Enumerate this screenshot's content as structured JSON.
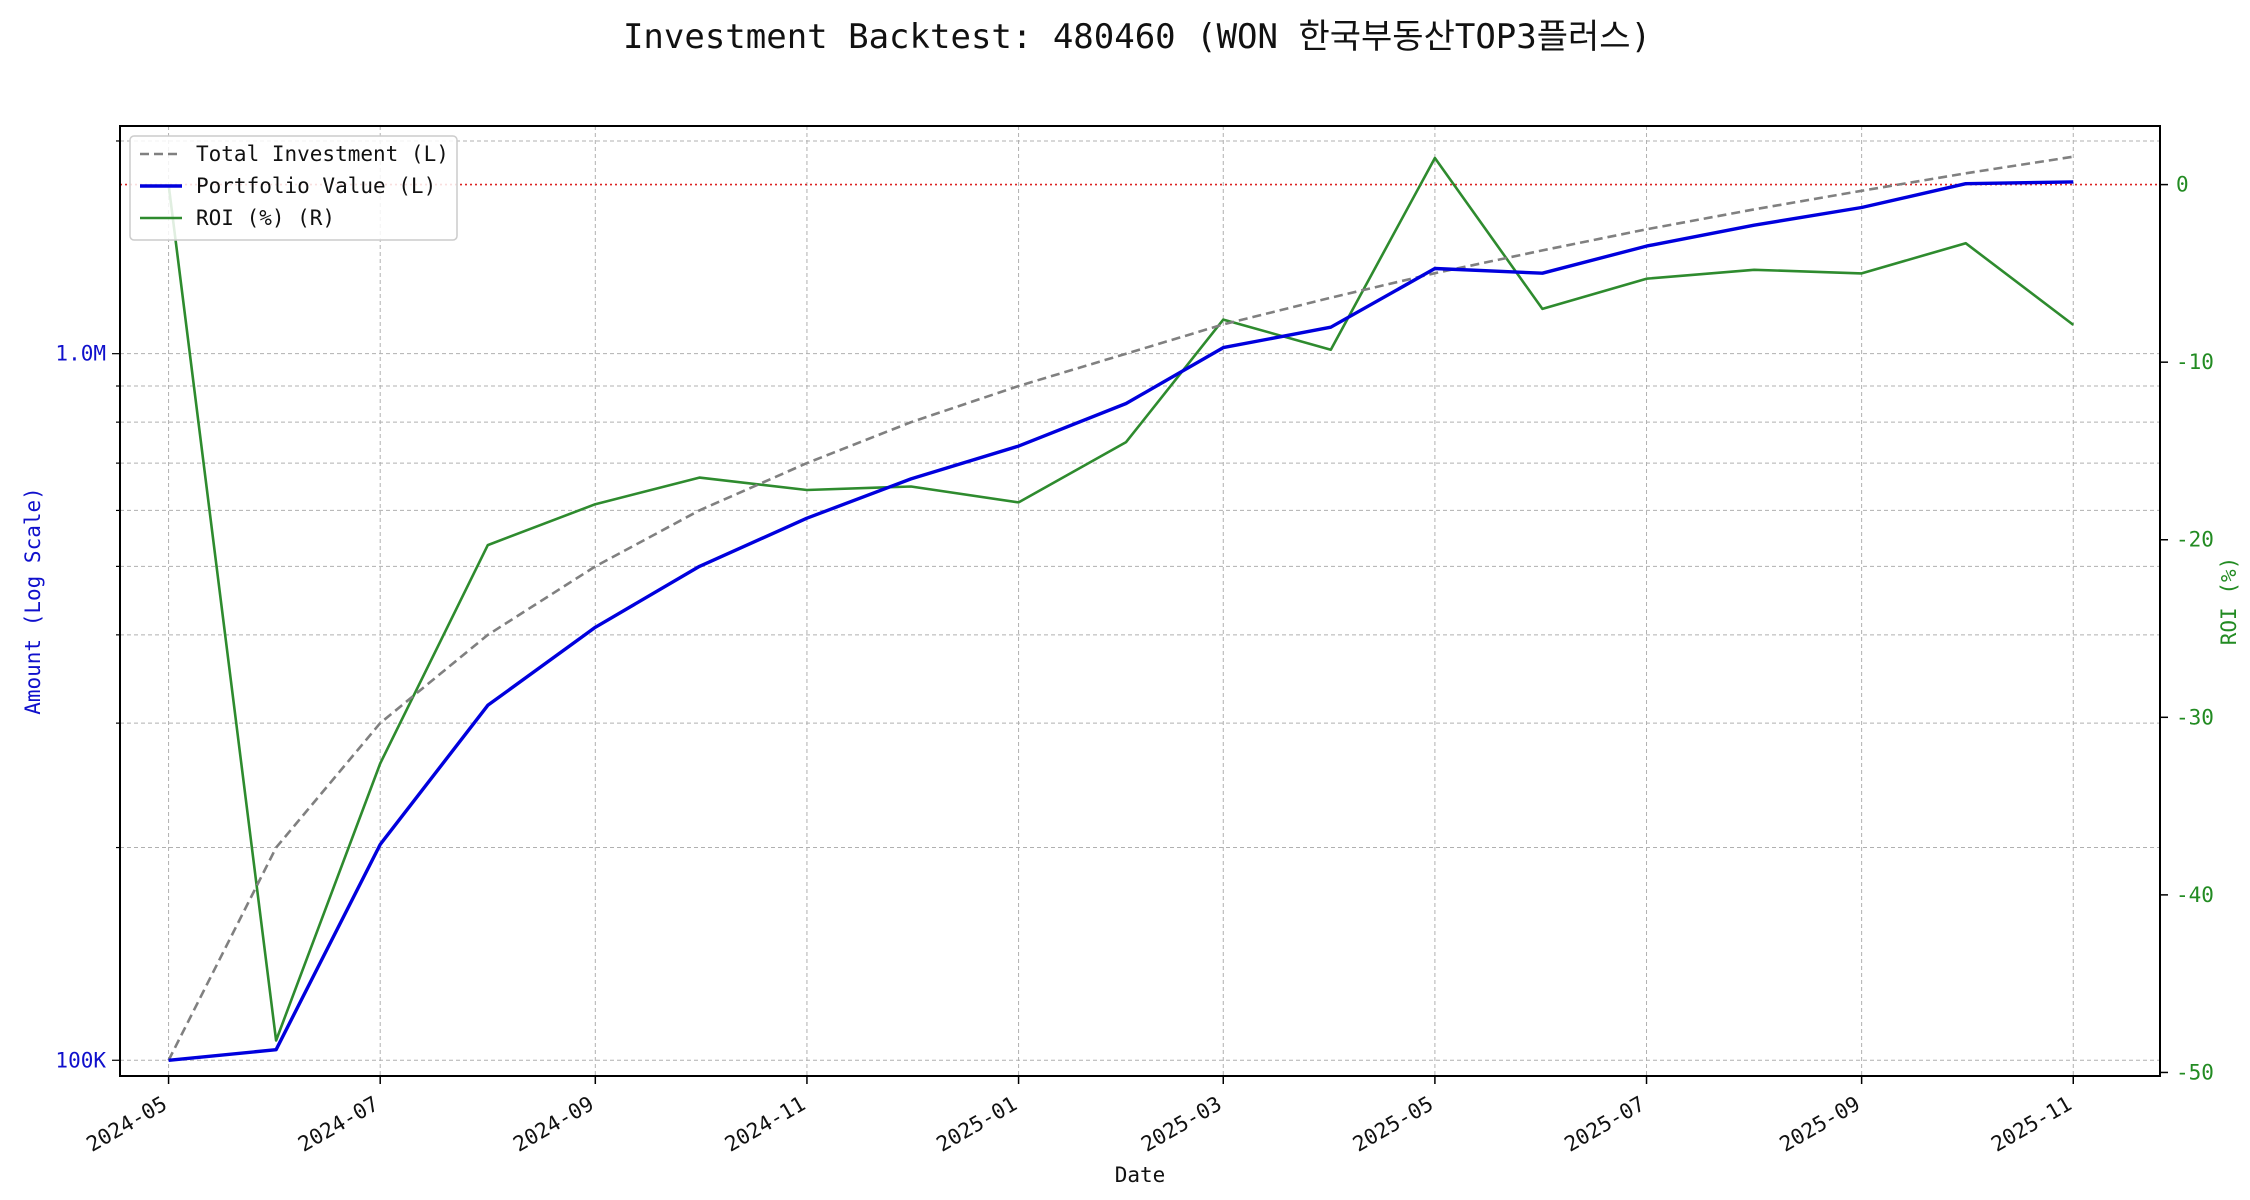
{
  "chart_data": {
    "type": "line",
    "title": "Investment Backtest: 480460 (WON 한국부동산TOP3플러스)",
    "xlabel": "Date",
    "ylabel_left": "Amount (Log Scale)",
    "ylabel_right": "ROI (%)",
    "y_left_scale": "log",
    "y_left_range": [
      95000,
      2100000
    ],
    "y_left_ticks": [
      {
        "value": 100000,
        "label": "100K"
      },
      {
        "value": 1000000,
        "label": "1.0M"
      }
    ],
    "y_right_range": [
      -50.2,
      3.3
    ],
    "y_right_ticks": [
      0,
      -10,
      -20,
      -30,
      -40,
      -50
    ],
    "x_range": [
      "2024-04-17",
      "2025-11-26"
    ],
    "x_tick_labels": [
      "2024-05",
      "2024-07",
      "2024-09",
      "2024-11",
      "2025-01",
      "2025-03",
      "2025-05",
      "2025-07",
      "2025-09",
      "2025-11"
    ],
    "x_tick_dates": [
      "2024-05-01",
      "2024-07-01",
      "2024-09-01",
      "2024-11-01",
      "2025-01-01",
      "2025-03-01",
      "2025-05-01",
      "2025-07-01",
      "2025-09-01",
      "2025-11-01"
    ],
    "grid": true,
    "legend_position": "top-left",
    "roi_reference_line": 0,
    "dates": [
      "2024-05-01",
      "2024-06-01",
      "2024-07-01",
      "2024-08-01",
      "2024-09-01",
      "2024-10-01",
      "2024-11-01",
      "2024-12-01",
      "2025-01-01",
      "2025-02-01",
      "2025-03-01",
      "2025-04-01",
      "2025-05-01",
      "2025-06-01",
      "2025-07-01",
      "2025-08-01",
      "2025-09-01",
      "2025-10-01",
      "2025-11-01"
    ],
    "series": [
      {
        "name": "Total Investment (L)",
        "axis": "left",
        "color": "#808080",
        "style": "dashed",
        "values": [
          100000,
          200000,
          300000,
          400000,
          500000,
          600000,
          700000,
          800000,
          900000,
          1000000,
          1100000,
          1200000,
          1300000,
          1400000,
          1500000,
          1600000,
          1700000,
          1800000,
          1900000
        ]
      },
      {
        "name": "Portfolio Value (L)",
        "axis": "left",
        "color": "#0000dd",
        "style": "solid",
        "values": [
          100000,
          103500,
          202000,
          318000,
          410000,
          500000,
          585000,
          665000,
          740000,
          850000,
          1020000,
          1090000,
          1320000,
          1300000,
          1420000,
          1520000,
          1610000,
          1740000,
          1750000
        ]
      },
      {
        "name": "ROI (%) (R)",
        "axis": "right",
        "color": "#2e8b2e",
        "style": "solid",
        "values": [
          0,
          -48.2,
          -32.6,
          -20.3,
          -18.0,
          -16.5,
          -17.2,
          -17.0,
          -17.9,
          -14.5,
          -7.6,
          -9.3,
          1.5,
          -7.0,
          -5.3,
          -4.8,
          -5.0,
          -3.3,
          -7.9
        ]
      }
    ]
  }
}
